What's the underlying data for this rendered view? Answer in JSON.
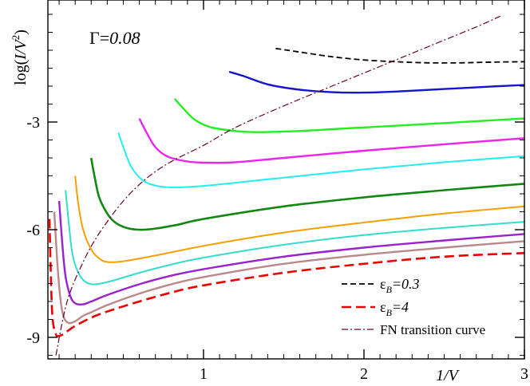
{
  "chart_data": {
    "type": "line",
    "title": "",
    "xlabel": "1/V",
    "ylabel_parts": {
      "pre": "log(",
      "italic": "I/V",
      "sup": "2",
      "post": ")"
    },
    "xlim": [
      0.03,
      3
    ],
    "ylim": [
      -9.6,
      0.4
    ],
    "x_ticks": [
      {
        "value": 1,
        "label": "1"
      },
      {
        "value": 2,
        "label": "2"
      },
      {
        "value": 3,
        "label": "3"
      }
    ],
    "y_ticks": [
      {
        "value": -3,
        "label": "-3"
      },
      {
        "value": -6,
        "label": "-6"
      },
      {
        "value": -9,
        "label": "-9"
      }
    ],
    "annotation": {
      "symbol": "Γ",
      "equals": "=",
      "value": "0.08"
    },
    "colors": {
      "black": "#000000",
      "blue": "#1515cc",
      "lightgreen": "#22ee22",
      "magenta": "#ee22ee",
      "cyan": "#22eeee",
      "green": "#118811",
      "orange": "#f5a000",
      "turquoise": "#33ddcc",
      "purple": "#9922cc",
      "rosybrown": "#bb8888",
      "red": "#ee0000",
      "fn": "#660033"
    },
    "legend": {
      "position": "bottom-right",
      "entries": [
        {
          "series": "eps_0.3",
          "symbol": "ε",
          "sub": "B",
          "value": "=0.3"
        },
        {
          "series": "eps_4",
          "symbol": "ε",
          "sub": "B",
          "value": "=4"
        },
        {
          "series": "fn_transition",
          "text": "FN transition curve"
        }
      ]
    },
    "series": [
      {
        "name": "eps_0.3",
        "color": "black",
        "dash": "7,4",
        "width": 1.8,
        "x": [
          1.45,
          1.6,
          1.8,
          2.0,
          2.2,
          2.4,
          2.6,
          2.8,
          3.0
        ],
        "y": [
          -0.95,
          -1.05,
          -1.18,
          -1.27,
          -1.32,
          -1.35,
          -1.35,
          -1.33,
          -1.32
        ]
      },
      {
        "name": "blue",
        "color": "blue",
        "width": 2.4,
        "x": [
          1.16,
          1.25,
          1.4,
          1.6,
          1.8,
          2.0,
          2.2,
          2.5,
          2.8,
          3.0
        ],
        "y": [
          -1.6,
          -1.72,
          -1.95,
          -2.1,
          -2.17,
          -2.18,
          -2.15,
          -2.08,
          -2.01,
          -1.97
        ]
      },
      {
        "name": "lightgreen",
        "color": "lightgreen",
        "width": 2.4,
        "x": [
          0.82,
          0.88,
          0.95,
          1.05,
          1.2,
          1.3,
          1.4,
          1.6,
          1.8,
          2.0,
          2.5,
          3.0
        ],
        "y": [
          -2.35,
          -2.65,
          -2.95,
          -3.15,
          -3.25,
          -3.28,
          -3.28,
          -3.25,
          -3.2,
          -3.15,
          -3.03,
          -2.9
        ]
      },
      {
        "name": "magenta",
        "color": "magenta",
        "width": 2.4,
        "x": [
          0.6,
          0.64,
          0.7,
          0.78,
          0.9,
          1.0,
          1.2,
          1.5,
          2.0,
          2.5,
          3.0
        ],
        "y": [
          -2.9,
          -3.25,
          -3.7,
          -3.97,
          -4.1,
          -4.13,
          -4.12,
          -4.0,
          -3.8,
          -3.62,
          -3.45
        ]
      },
      {
        "name": "cyan",
        "color": "cyan",
        "width": 2.0,
        "x": [
          0.47,
          0.5,
          0.55,
          0.62,
          0.7,
          0.8,
          1.0,
          1.5,
          2.0,
          2.5,
          3.0
        ],
        "y": [
          -3.3,
          -3.7,
          -4.25,
          -4.62,
          -4.77,
          -4.82,
          -4.78,
          -4.55,
          -4.32,
          -4.12,
          -3.95
        ]
      },
      {
        "name": "green",
        "color": "green",
        "width": 2.6,
        "x": [
          0.3,
          0.32,
          0.35,
          0.4,
          0.45,
          0.52,
          0.6,
          0.7,
          0.85,
          1.0,
          1.5,
          2.0,
          2.5,
          3.0
        ],
        "y": [
          -4.0,
          -4.5,
          -5.1,
          -5.55,
          -5.8,
          -5.95,
          -6.0,
          -5.97,
          -5.85,
          -5.7,
          -5.35,
          -5.1,
          -4.9,
          -4.72
        ]
      },
      {
        "name": "orange",
        "color": "orange",
        "width": 2.0,
        "x": [
          0.2,
          0.22,
          0.25,
          0.3,
          0.35,
          0.4,
          0.5,
          0.7,
          1.0,
          1.5,
          2.0,
          2.5,
          3.0
        ],
        "y": [
          -4.5,
          -5.3,
          -6.0,
          -6.55,
          -6.8,
          -6.9,
          -6.88,
          -6.72,
          -6.45,
          -6.08,
          -5.8,
          -5.55,
          -5.35
        ]
      },
      {
        "name": "turquoise",
        "color": "turquoise",
        "width": 2.0,
        "x": [
          0.14,
          0.16,
          0.18,
          0.21,
          0.25,
          0.3,
          0.36,
          0.45,
          0.6,
          0.8,
          1.0,
          1.5,
          2.0,
          2.5,
          3.0
        ],
        "y": [
          -4.9,
          -5.8,
          -6.6,
          -7.1,
          -7.4,
          -7.52,
          -7.5,
          -7.4,
          -7.2,
          -6.97,
          -6.78,
          -6.42,
          -6.15,
          -5.95,
          -5.78
        ]
      },
      {
        "name": "purple",
        "color": "purple",
        "width": 2.4,
        "x": [
          0.1,
          0.12,
          0.14,
          0.17,
          0.2,
          0.25,
          0.3,
          0.4,
          0.6,
          0.8,
          1.0,
          1.5,
          2.0,
          2.5,
          3.0
        ],
        "y": [
          -5.2,
          -6.4,
          -7.3,
          -7.85,
          -8.05,
          -8.08,
          -8.0,
          -7.82,
          -7.52,
          -7.28,
          -7.1,
          -6.75,
          -6.5,
          -6.3,
          -6.12
        ]
      },
      {
        "name": "rosybrown",
        "color": "rosybrown",
        "width": 2.4,
        "x": [
          0.07,
          0.09,
          0.11,
          0.13,
          0.16,
          0.2,
          0.25,
          0.3,
          0.4,
          0.6,
          0.8,
          1.0,
          1.5,
          2.0,
          2.5,
          3.0
        ],
        "y": [
          -5.5,
          -7.0,
          -8.0,
          -8.45,
          -8.6,
          -8.55,
          -8.4,
          -8.3,
          -8.1,
          -7.78,
          -7.52,
          -7.32,
          -6.95,
          -6.7,
          -6.5,
          -6.32
        ]
      },
      {
        "name": "eps_4",
        "color": "red",
        "dash": "12,6",
        "width": 2.6,
        "x": [
          0.04,
          0.05,
          0.06,
          0.08,
          0.1,
          0.13,
          0.16,
          0.2,
          0.3,
          0.4,
          0.6,
          0.8,
          1.0,
          1.5,
          2.0,
          2.5,
          3.0
        ],
        "y": [
          -5.7,
          -7.5,
          -8.5,
          -8.92,
          -8.96,
          -8.9,
          -8.8,
          -8.68,
          -8.45,
          -8.28,
          -8.0,
          -7.75,
          -7.55,
          -7.2,
          -6.95,
          -6.75,
          -6.65
        ]
      },
      {
        "name": "fn_transition",
        "color": "fn",
        "dash": "8,3,2,3",
        "width": 1.2,
        "x": [
          0.08,
          0.15,
          0.25,
          0.35,
          0.5,
          0.65,
          0.8,
          1.0,
          1.2,
          1.5,
          1.8,
          2.1,
          2.4,
          2.7,
          2.85
        ],
        "y": [
          -9.5,
          -8.0,
          -6.9,
          -6.1,
          -5.2,
          -4.55,
          -4.1,
          -3.65,
          -3.15,
          -2.55,
          -2.0,
          -1.45,
          -0.9,
          -0.35,
          -0.05
        ]
      }
    ]
  }
}
